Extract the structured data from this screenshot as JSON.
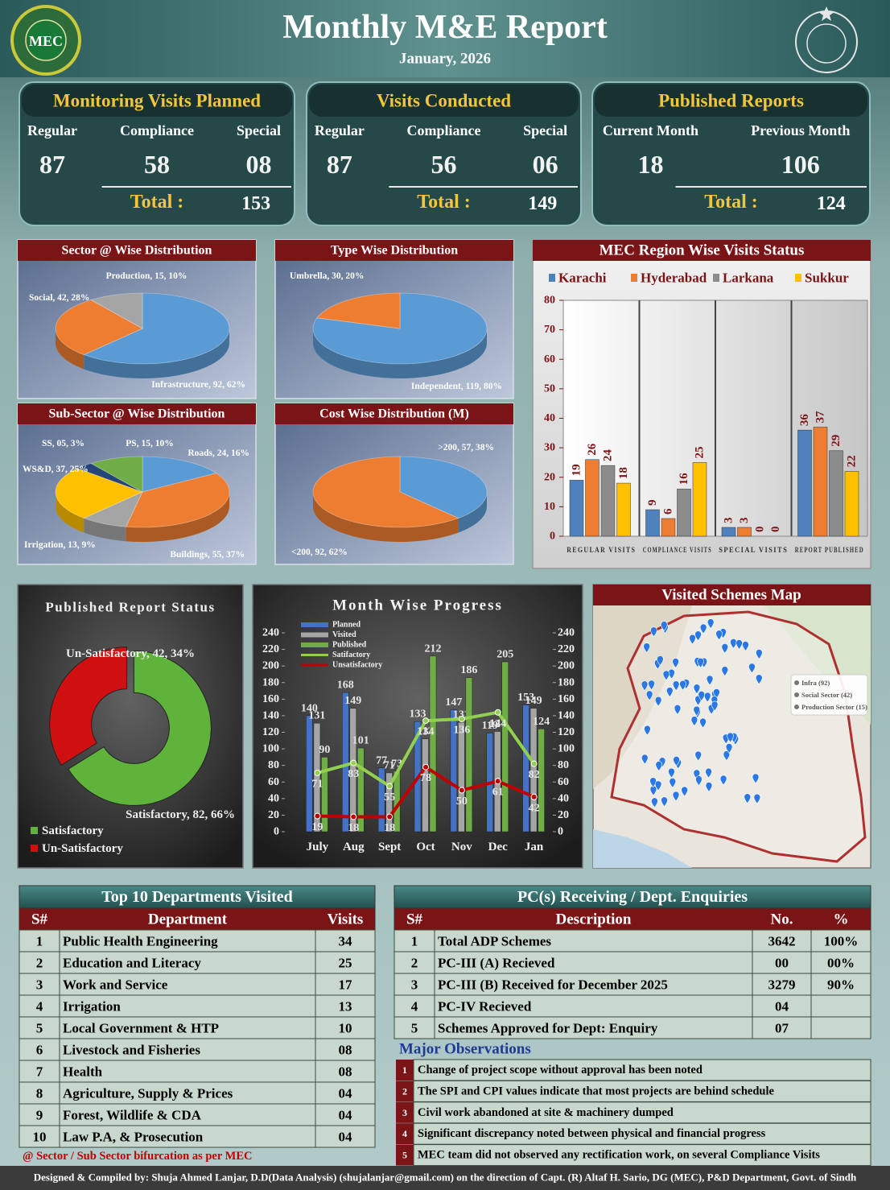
{
  "header": {
    "title": "Monthly M&E Report",
    "subtitle": "January, 2026",
    "logo": "MEC"
  },
  "kpis": [
    {
      "title": "Monitoring Visits Planned",
      "columns": [
        {
          "label": "Regular",
          "value": "87"
        },
        {
          "label": "Compliance",
          "value": "58"
        },
        {
          "label": "Special",
          "value": "08"
        }
      ],
      "total_label": "Total :",
      "total": "153"
    },
    {
      "title": "Visits Conducted",
      "columns": [
        {
          "label": "Regular",
          "value": "87"
        },
        {
          "label": "Compliance",
          "value": "56"
        },
        {
          "label": "Special",
          "value": "06"
        }
      ],
      "total_label": "Total :",
      "total": "149"
    },
    {
      "title": "Published Reports",
      "columns": [
        {
          "label": "Current Month",
          "value": "18"
        },
        {
          "label": "Previous Month",
          "value": "106"
        }
      ],
      "total_label": "Total :",
      "total": "124"
    }
  ],
  "chart_data": [
    {
      "type": "pie",
      "title": "Sector @ Wise Distribution",
      "values": [
        92,
        42,
        15
      ],
      "value_labels": [
        "Infrastructure, 92, 62%",
        "Social, 42, 28%",
        "Production, 15, 10%"
      ],
      "colors": [
        "#5b9bd5",
        "#ed7d31",
        "#a5a5a5"
      ]
    },
    {
      "type": "pie",
      "title": "Type Wise Distribution",
      "values": [
        119,
        30
      ],
      "value_labels": [
        "Independent, 119, 80%",
        "Umbrella, 30, 20%"
      ],
      "colors": [
        "#5b9bd5",
        "#ed7d31"
      ]
    },
    {
      "type": "pie",
      "title": "Sub-Sector @ Wise Distribution",
      "values": [
        24,
        55,
        13,
        37,
        5,
        15
      ],
      "value_labels": [
        "Roads, 24, 16%",
        "Buildings, 55, 37%",
        "Irrigation, 13, 9%",
        "WS&D, 37, 25%",
        "SS, 05, 3%",
        "PS, 15, 10%"
      ],
      "colors": [
        "#5b9bd5",
        "#ed7d31",
        "#a5a5a5",
        "#ffc000",
        "#264478",
        "#70ad47"
      ]
    },
    {
      "type": "pie",
      "title": "Cost Wise Distribution (M)",
      "values": [
        57,
        92
      ],
      "value_labels": [
        ">200, 57, 38%",
        "<200, 92, 62%"
      ],
      "colors": [
        "#5b9bd5",
        "#ed7d31"
      ]
    },
    {
      "type": "bar",
      "title": "MEC Region Wise Visits Status",
      "categories": [
        "REGULAR VISITS",
        "COMPLIANCE VISITS",
        "SPECIAL VISITS",
        "REPORT PUBLISHED"
      ],
      "series": [
        {
          "name": "Karachi",
          "color": "#4f81bd",
          "values": [
            19,
            9,
            3,
            36
          ]
        },
        {
          "name": "Hyderabad",
          "color": "#ed7d31",
          "values": [
            26,
            6,
            3,
            37
          ]
        },
        {
          "name": "Larkana",
          "color": "#8c8c8c",
          "values": [
            24,
            16,
            0,
            29
          ]
        },
        {
          "name": "Sukkur",
          "color": "#ffc000",
          "values": [
            18,
            25,
            0,
            22
          ]
        }
      ],
      "ylim": [
        0,
        80
      ],
      "yticks": [
        0,
        10,
        20,
        30,
        40,
        50,
        60,
        70,
        80
      ],
      "grid": false,
      "legend": "top"
    },
    {
      "type": "doughnut",
      "title": "Published Report Status",
      "categories": [
        "Satisfactory",
        "Un-Satisfactory"
      ],
      "values": [
        82,
        42
      ],
      "value_labels": [
        "Satisfactory, 82, 66%",
        "Un-Satisfactory, 42, 34%"
      ],
      "colors": [
        "#5fb33a",
        "#d01010"
      ],
      "legend": "bottom-left"
    },
    {
      "type": "combo",
      "title": "Month Wise Progress",
      "categories": [
        "July",
        "Aug",
        "Sept",
        "Oct",
        "Nov",
        "Dec",
        "Jan"
      ],
      "series": [
        {
          "name": "Planned",
          "type": "bar",
          "color": "#4472c4",
          "values": [
            140,
            168,
            77,
            133,
            147,
            119,
            153
          ]
        },
        {
          "name": "Visited",
          "type": "bar",
          "color": "#a5a5a5",
          "values": [
            131,
            149,
            71,
            112,
            132,
            121,
            149
          ]
        },
        {
          "name": "Published",
          "type": "bar",
          "color": "#70ad47",
          "values": [
            90,
            101,
            73,
            212,
            186,
            205,
            124
          ]
        },
        {
          "name": "Satifactory",
          "type": "line",
          "axis": "y2",
          "color": "#92d050",
          "values": [
            71,
            83,
            55,
            134,
            136,
            144,
            82
          ]
        },
        {
          "name": "Unsatisfactory",
          "type": "line",
          "axis": "y2",
          "color": "#c00000",
          "values": [
            19,
            18,
            18,
            78,
            50,
            61,
            42
          ]
        }
      ],
      "ylim": [
        0,
        240
      ],
      "yticks": [
        0,
        20,
        40,
        60,
        80,
        100,
        120,
        140,
        160,
        180,
        200,
        220,
        240
      ],
      "y2lim": [
        0,
        240
      ],
      "y2ticks": [
        0,
        20,
        40,
        60,
        80,
        100,
        120,
        140,
        160,
        180,
        200,
        220,
        240
      ],
      "grid": false,
      "legend": "top-left"
    }
  ],
  "map": {
    "title": "Visited Schemes Map",
    "legend": [
      "Infra (92)",
      "Social Sector (42)",
      "Production Sector (15)"
    ]
  },
  "departments": {
    "title": "Top 10 Departments Visited",
    "headers": [
      "S#",
      "Department",
      "Visits"
    ],
    "rows": [
      [
        "1",
        "Public Health Engineering",
        "34"
      ],
      [
        "2",
        "Education and Literacy",
        "25"
      ],
      [
        "3",
        "Work and Service",
        "17"
      ],
      [
        "4",
        "Irrigation",
        "13"
      ],
      [
        "5",
        "Local Government & HTP",
        "10"
      ],
      [
        "6",
        "Livestock and Fisheries",
        "08"
      ],
      [
        "7",
        "Health",
        "08"
      ],
      [
        "8",
        "Agriculture, Supply & Prices",
        "04"
      ],
      [
        "9",
        "Forest, Wildlife & CDA",
        "04"
      ],
      [
        "10",
        "Law P.A, & Prosecution",
        "04"
      ]
    ]
  },
  "enquiries": {
    "title": "PC(s) Receiving / Dept. Enquiries",
    "headers": [
      "S#",
      "Description",
      "No.",
      "%"
    ],
    "rows": [
      [
        "1",
        "Total ADP Schemes",
        "3642",
        "100%"
      ],
      [
        "2",
        "PC-III (A) Recieved",
        "00",
        "00%"
      ],
      [
        "3",
        "PC-III (B) Received for December 2025",
        "3279",
        "90%"
      ],
      [
        "4",
        "PC-IV Recieved",
        "04"
      ],
      [
        "5",
        "Schemes Approved for Dept: Enquiry",
        "07"
      ]
    ]
  },
  "observations": {
    "title": "Major Observations",
    "items": [
      {
        "n": "1",
        "text": "Change of project scope without approval has been noted"
      },
      {
        "n": "2",
        "text": "The SPI and CPI values indicate that most projects are behind schedule"
      },
      {
        "n": "3",
        "text": "Civil work abandoned at site & machinery dumped"
      },
      {
        "n": "4",
        "text": "Significant discrepancy noted between physical and financial progress"
      },
      {
        "n": "5",
        "text": "MEC team did not observed any rectification work, on several Compliance Visits"
      }
    ]
  },
  "footnote": "@ Sector / Sub Sector bifurcation as per MEC",
  "footer": "Designed & Compiled by: Shuja Ahmed Lanjar, D.D(Data Analysis) (shujalanjar@gmail.com) on the direction of Capt. (R) Altaf H. Sario, DG (MEC), P&D Department, Govt. of Sindh"
}
